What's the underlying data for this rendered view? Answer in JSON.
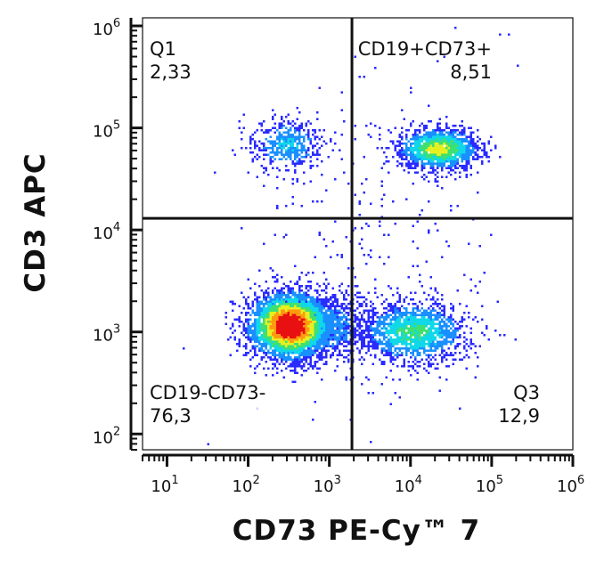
{
  "chart_data": {
    "type": "scatter",
    "subtype": "flow-cytometry-density-pseudocolor",
    "xlabel": "CD73 PE-Cy™ 7",
    "ylabel": "CD3 APC",
    "xscale": "log",
    "yscale": "log",
    "xlim": [
      5,
      1000000
    ],
    "ylim": [
      70,
      1200000
    ],
    "x_ticks": [
      {
        "base": "10",
        "exp": "1",
        "value": 10
      },
      {
        "base": "10",
        "exp": "2",
        "value": 100
      },
      {
        "base": "10",
        "exp": "3",
        "value": 1000
      },
      {
        "base": "10",
        "exp": "4",
        "value": 10000
      },
      {
        "base": "10",
        "exp": "5",
        "value": 100000
      },
      {
        "base": "10",
        "exp": "6",
        "value": 1000000
      }
    ],
    "y_ticks": [
      {
        "base": "10",
        "exp": "2",
        "value": 100
      },
      {
        "base": "10",
        "exp": "3",
        "value": 1000
      },
      {
        "base": "10",
        "exp": "4",
        "value": 10000
      },
      {
        "base": "10",
        "exp": "5",
        "value": 100000
      },
      {
        "base": "10",
        "exp": "6",
        "value": 1000000
      }
    ],
    "gate": {
      "x": 1900,
      "y": 13000
    },
    "quadrants": [
      {
        "id": "q1",
        "name": "Q1",
        "value": "2,33",
        "position": "top-left"
      },
      {
        "id": "q2",
        "name": "CD19+CD73+",
        "value": "8,51",
        "position": "top-right"
      },
      {
        "id": "q3",
        "name": "Q3",
        "value": "12,9",
        "position": "bottom-right"
      },
      {
        "id": "q4",
        "name": "CD19-CD73-",
        "value": "76,3",
        "position": "bottom-left"
      }
    ],
    "populations": [
      {
        "name": "CD3- CD73- (main)",
        "cx": 330,
        "cy": 1150,
        "sx": 0.25,
        "sy": 0.16,
        "n": 3800,
        "peak": 1.0
      },
      {
        "name": "CD3- CD73- (tail)",
        "cx": 900,
        "cy": 1100,
        "sx": 0.3,
        "sy": 0.17,
        "n": 900,
        "peak": 0.25
      },
      {
        "name": "CD3- CD73+",
        "cx": 11000,
        "cy": 1000,
        "sx": 0.33,
        "sy": 0.15,
        "n": 1500,
        "peak": 0.45
      },
      {
        "name": "CD3+ CD73-",
        "cx": 300,
        "cy": 68000,
        "sx": 0.22,
        "sy": 0.13,
        "n": 500,
        "peak": 0.3
      },
      {
        "name": "CD3+ CD73+",
        "cx": 22000,
        "cy": 62000,
        "sx": 0.25,
        "sy": 0.1,
        "n": 1400,
        "peak": 0.6
      },
      {
        "name": "background",
        "cx": 3000,
        "cy": 8000,
        "sx": 0.8,
        "sy": 0.9,
        "n": 250,
        "peak": 0.05
      }
    ],
    "colormap": [
      "#2a2bff",
      "#1a8fff",
      "#10d8e8",
      "#3fe070",
      "#e6f020",
      "#ff9a10",
      "#e81010"
    ]
  }
}
